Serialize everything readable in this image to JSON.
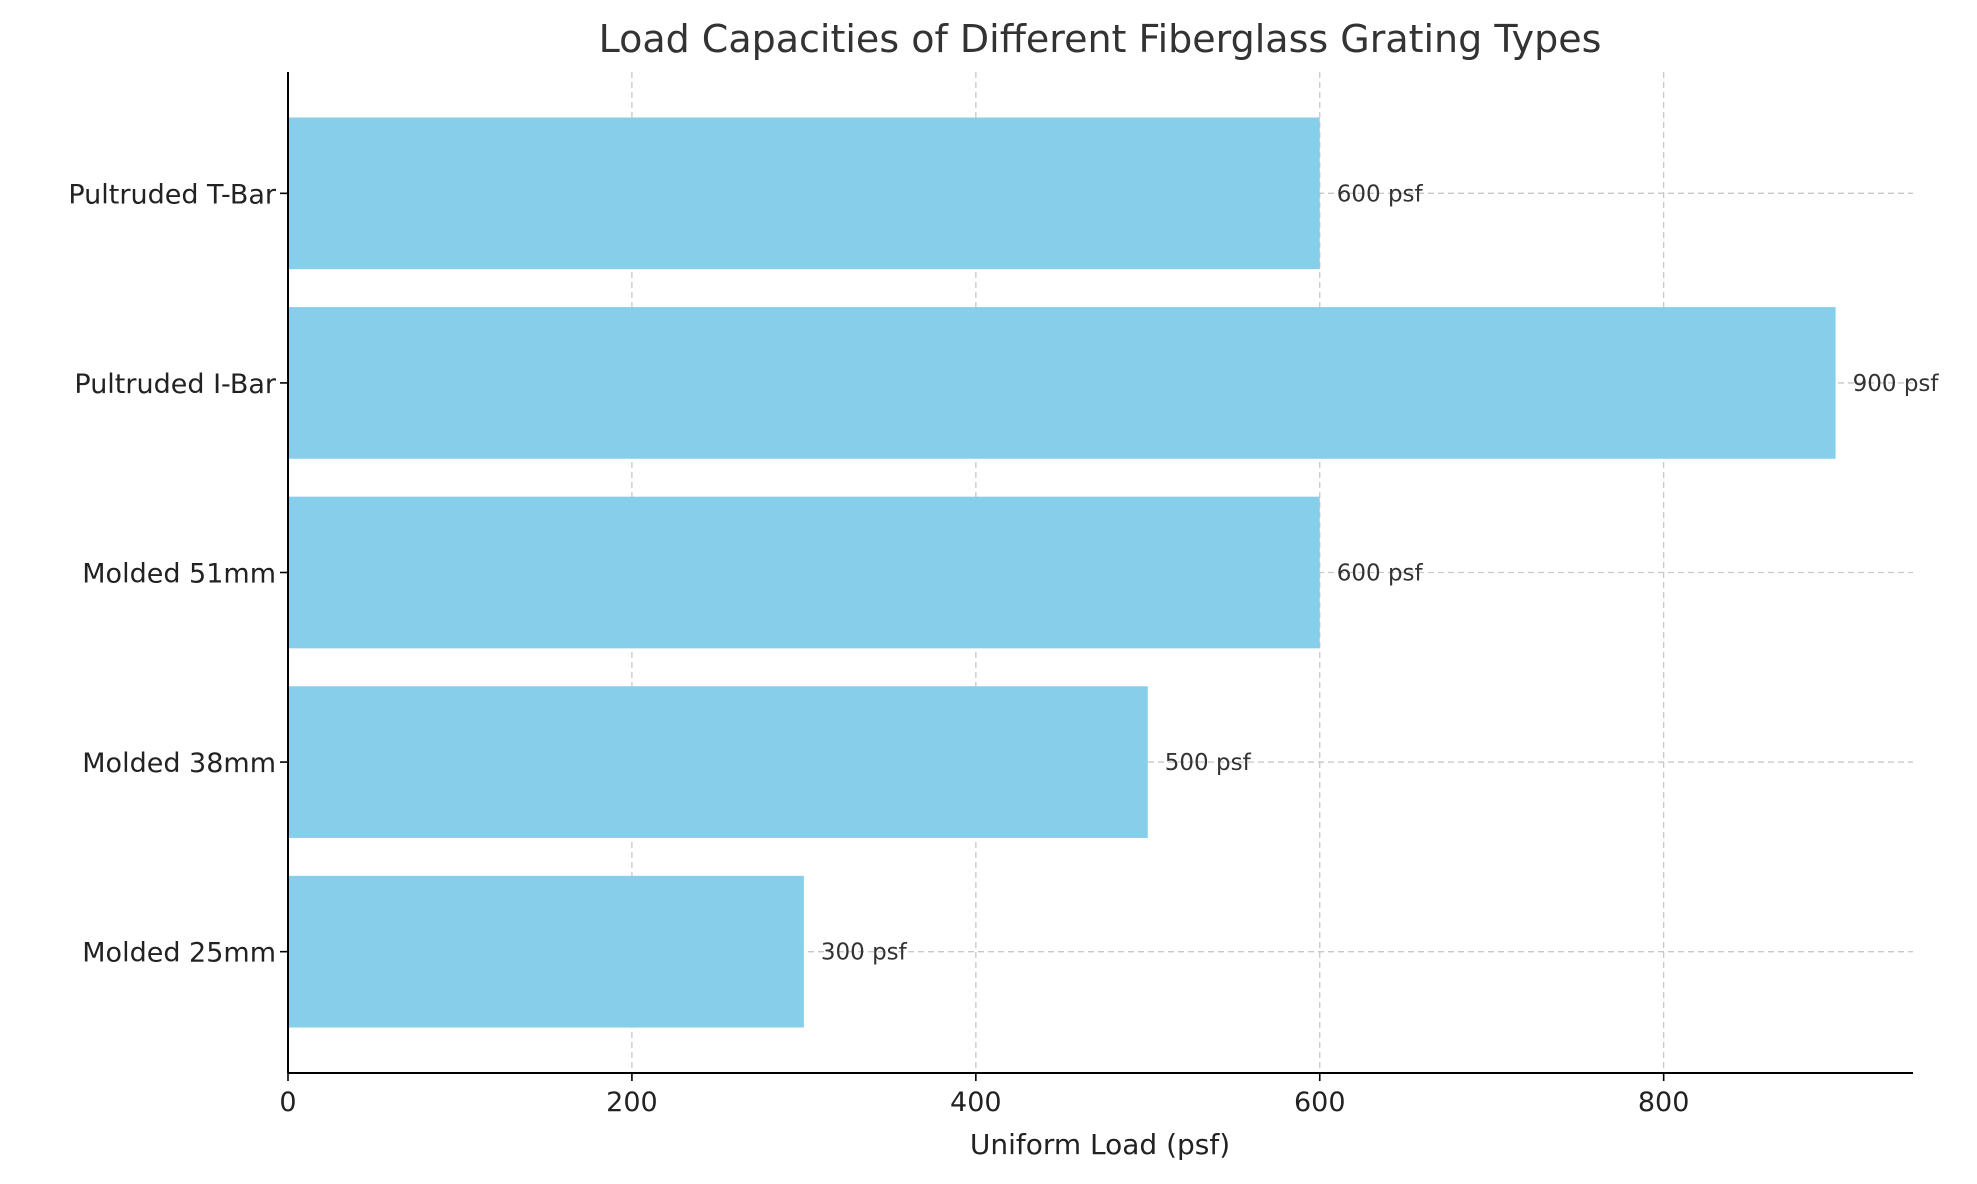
{
  "chart_data": {
    "type": "bar",
    "orientation": "horizontal",
    "title": "Load Capacities of Different Fiberglass Grating Types",
    "xlabel": "Uniform Load (psf)",
    "ylabel": "",
    "categories": [
      "Molded 25mm",
      "Molded 38mm",
      "Molded 51mm",
      "Pultruded I-Bar",
      "Pultruded T-Bar"
    ],
    "values": [
      300,
      500,
      600,
      900,
      600
    ],
    "data_labels": [
      "300 psf",
      "500 psf",
      "600 psf",
      "900 psf",
      "600 psf"
    ],
    "xlim": [
      0,
      945
    ],
    "xticks": [
      0,
      200,
      400,
      600,
      800
    ],
    "xtick_labels": [
      "0",
      "200",
      "400",
      "600",
      "800"
    ],
    "grid": true,
    "bar_color": "#87ceeb"
  }
}
